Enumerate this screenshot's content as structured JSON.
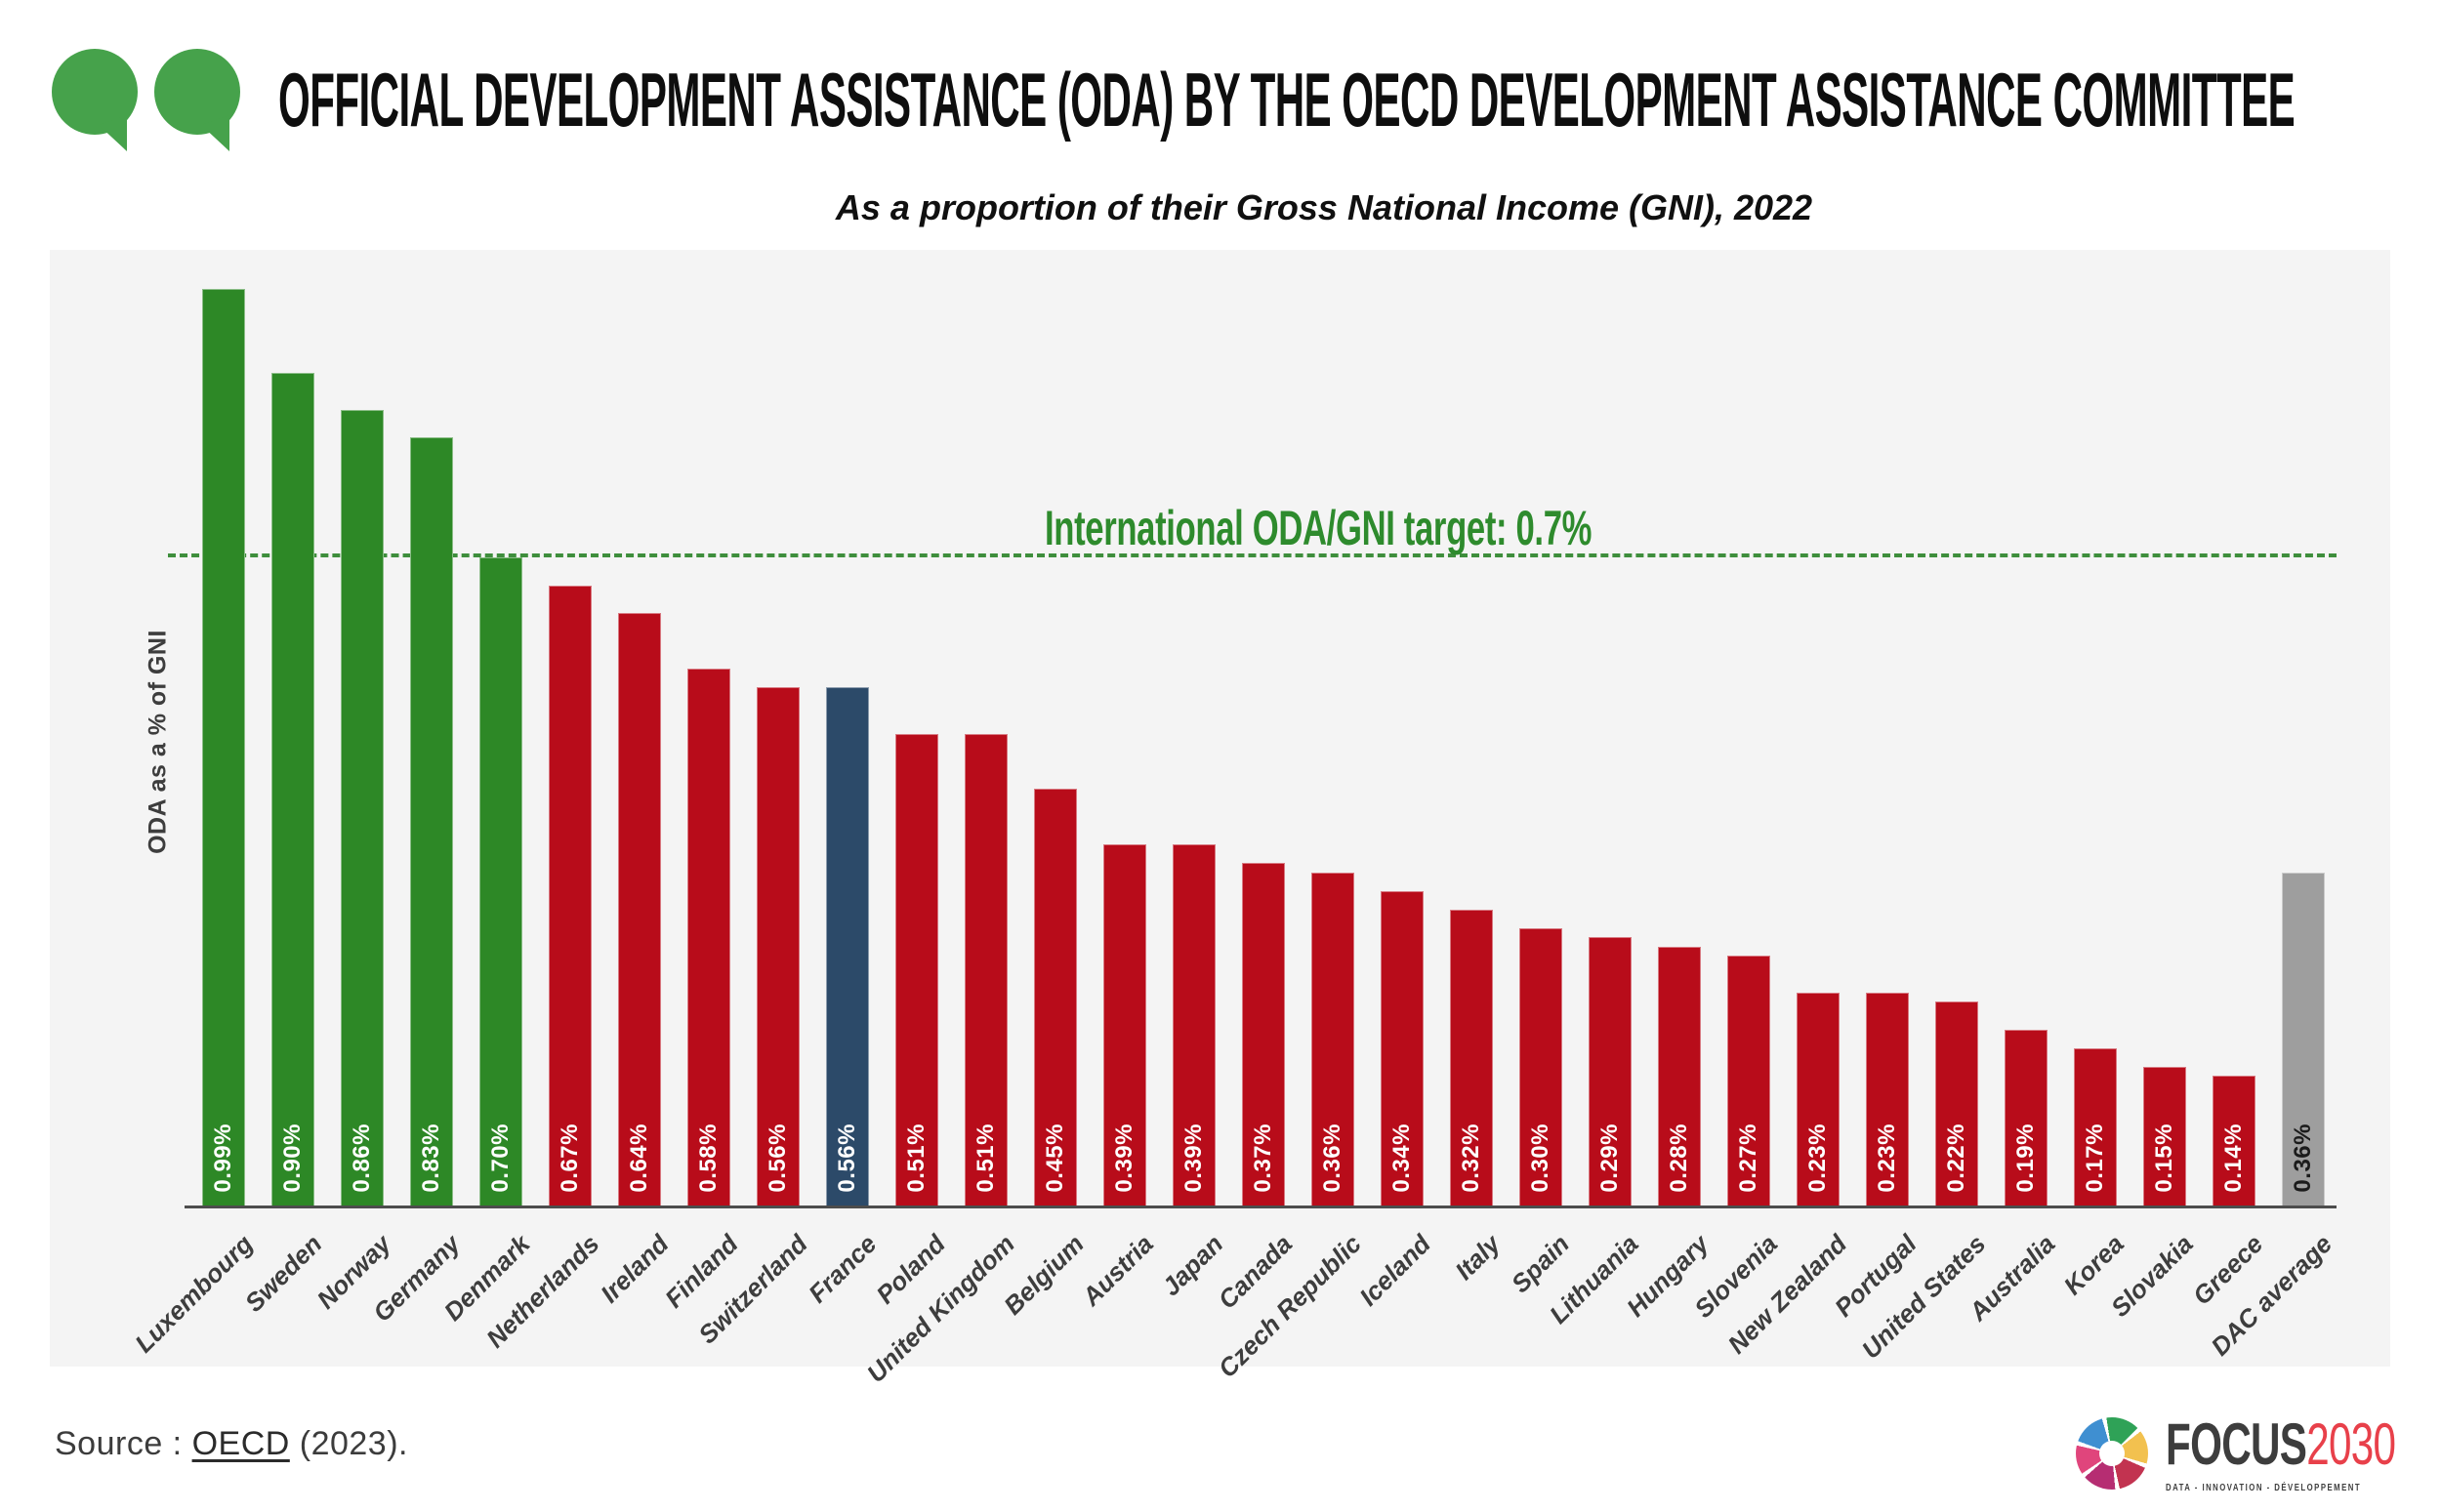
{
  "header": {
    "title": "OFFICIAL DEVELOPMENT ASSISTANCE (ODA) BY THE OECD DEVELOPMENT ASSISTANCE COMMITTEE",
    "subtitle": "As a proportion of their Gross National Income (GNI), 2022"
  },
  "chart_data": {
    "type": "bar",
    "title": "Official Development Assistance (ODA) by the OECD Development Assistance Committee",
    "subtitle": "As a proportion of their Gross National Income (GNI), 2022",
    "ylabel": "ODA as a % of GNI",
    "xlabel": "",
    "unit": "% of GNI",
    "ylim": [
      0,
      1.03
    ],
    "grid": false,
    "target": {
      "label": "International ODA/GNI target: 0.7%",
      "value": 0.7
    },
    "categories": [
      "Luxembourg",
      "Sweden",
      "Norway",
      "Germany",
      "Denmark",
      "Netherlands",
      "Ireland",
      "Finland",
      "Switzerland",
      "France",
      "Poland",
      "United Kingdom",
      "Belgium",
      "Austria",
      "Japan",
      "Canada",
      "Czech Republic",
      "Iceland",
      "Italy",
      "Spain",
      "Lithuania",
      "Hungary",
      "Slovenia",
      "New Zealand",
      "Portugal",
      "United States",
      "Australia",
      "Korea",
      "Slovakia",
      "Greece",
      "DAC average"
    ],
    "values": [
      0.99,
      0.9,
      0.86,
      0.83,
      0.7,
      0.67,
      0.64,
      0.58,
      0.56,
      0.56,
      0.51,
      0.51,
      0.45,
      0.39,
      0.39,
      0.37,
      0.36,
      0.34,
      0.32,
      0.3,
      0.29,
      0.28,
      0.27,
      0.23,
      0.23,
      0.22,
      0.19,
      0.17,
      0.15,
      0.14,
      0.36
    ],
    "value_labels": [
      "0.99%",
      "0.90%",
      "0.86%",
      "0.83%",
      "0.70%",
      "0.67%",
      "0.64%",
      "0.58%",
      "0.56%",
      "0.56%",
      "0.51%",
      "0.51%",
      "0.45%",
      "0.39%",
      "0.39%",
      "0.37%",
      "0.36%",
      "0.34%",
      "0.32%",
      "0.30%",
      "0.29%",
      "0.28%",
      "0.27%",
      "0.23%",
      "0.23%",
      "0.22%",
      "0.19%",
      "0.17%",
      "0.15%",
      "0.14%",
      "0.36%"
    ],
    "bar_color_keys": [
      "above_target",
      "above_target",
      "above_target",
      "above_target",
      "above_target",
      "below_target",
      "below_target",
      "below_target",
      "below_target",
      "france",
      "below_target",
      "below_target",
      "below_target",
      "below_target",
      "below_target",
      "below_target",
      "below_target",
      "below_target",
      "below_target",
      "below_target",
      "below_target",
      "below_target",
      "below_target",
      "below_target",
      "below_target",
      "below_target",
      "below_target",
      "below_target",
      "below_target",
      "below_target",
      "dac_average"
    ],
    "colors": {
      "above_target": "#2d8826",
      "below_target": "#b80c1a",
      "france": "#2c4a69",
      "dac_average": "#9e9e9e",
      "target_line": "#3e8e3c",
      "target_text": "#2e8b2d",
      "axis": "#4d4d4d",
      "panel_background": "#f4f4f4",
      "header_icon_green": "#46a24b"
    },
    "legend": []
  },
  "footer": {
    "source_prefix": "Source : ",
    "source_link": "OECD",
    "source_suffix": " (2023)."
  },
  "logo": {
    "brand": "FOCUS",
    "year": "2030",
    "tagline": "DATA - INNOVATION - DÉVELOPPEMENT"
  }
}
